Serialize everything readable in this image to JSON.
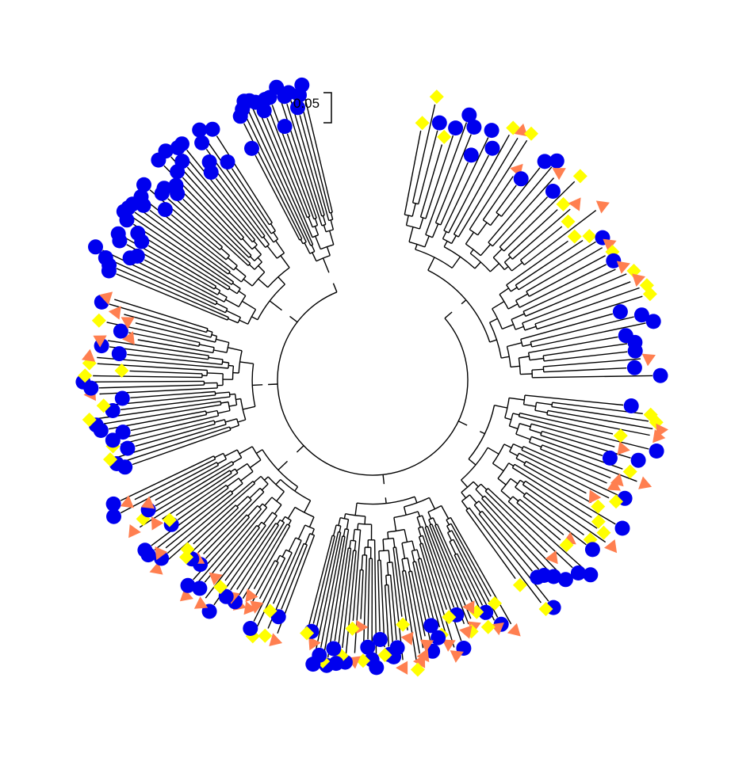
{
  "figure": {
    "scale_bar": {
      "label": "0.05"
    },
    "colors": {
      "branch": "#000000",
      "background": "#ffffff",
      "circle": "#0000ee",
      "diamond": "#ffff00",
      "triangle": "#ff7f50"
    },
    "marker_types": [
      "blue-circle",
      "yellow-diamond",
      "orange-triangle"
    ],
    "clades": [
      {
        "markers": "circle",
        "count": 16
      },
      {
        "markers": "circle",
        "count": 34
      },
      {
        "markers": "mixed",
        "count": 30
      },
      {
        "markers": "mixed",
        "count": 40
      },
      {
        "markers": "mixed",
        "count": 50
      },
      {
        "markers": "mixed",
        "count": 36
      },
      {
        "markers": "mixed",
        "count": 44
      }
    ]
  }
}
